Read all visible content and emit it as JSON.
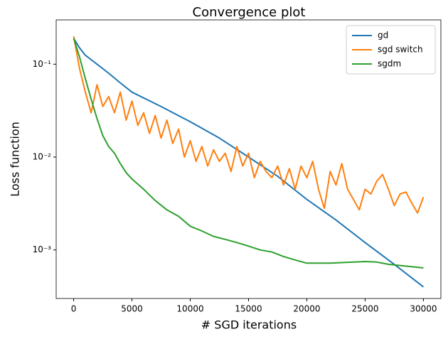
{
  "chart_data": {
    "type": "line",
    "title": "Convergence plot",
    "x_label": "# SGD iterations",
    "y_label": "Loss function",
    "xlim": [
      -1500,
      31500
    ],
    "xticks": [
      0,
      5000,
      10000,
      15000,
      20000,
      25000,
      30000
    ],
    "ylim": [
      0.0003,
      0.3
    ],
    "y_scale": "log",
    "yticks": [
      {
        "value": 0.1,
        "label": "10⁻¹"
      },
      {
        "value": 0.01,
        "label": "10⁻²"
      },
      {
        "value": 0.001,
        "label": "10⁻³"
      }
    ],
    "legend": "upper right",
    "series": [
      {
        "name": "gd",
        "color": "#1f77b4",
        "x": [
          0,
          500,
          1000,
          2000,
          3000,
          4000,
          5000,
          7500,
          10000,
          12500,
          15000,
          17500,
          20000,
          22500,
          25000,
          27500,
          30000
        ],
        "values": [
          0.19,
          0.15,
          0.125,
          0.1,
          0.08,
          0.063,
          0.05,
          0.035,
          0.024,
          0.016,
          0.01,
          0.0062,
          0.0035,
          0.0021,
          0.0012,
          0.0007,
          0.0004
        ]
      },
      {
        "name": "sgd switch",
        "color": "#ff7f0e",
        "x": [
          0,
          500,
          1000,
          1500,
          2000,
          2500,
          3000,
          3500,
          4000,
          4500,
          5000,
          5500,
          6000,
          6500,
          7000,
          7500,
          8000,
          8500,
          9000,
          9500,
          10000,
          10500,
          11000,
          11500,
          12000,
          12500,
          13000,
          13500,
          14000,
          14500,
          15000,
          15500,
          16000,
          16500,
          17000,
          17500,
          18000,
          18500,
          19000,
          19500,
          20000,
          20500,
          21000,
          21500,
          22000,
          22500,
          23000,
          23500,
          24000,
          24500,
          25000,
          25500,
          26000,
          26500,
          27000,
          27500,
          28000,
          28500,
          29000,
          29500,
          30000
        ],
        "values": [
          0.2,
          0.09,
          0.05,
          0.03,
          0.06,
          0.035,
          0.045,
          0.03,
          0.05,
          0.025,
          0.04,
          0.022,
          0.03,
          0.018,
          0.028,
          0.016,
          0.025,
          0.014,
          0.02,
          0.01,
          0.015,
          0.009,
          0.013,
          0.008,
          0.012,
          0.009,
          0.011,
          0.007,
          0.013,
          0.008,
          0.011,
          0.006,
          0.009,
          0.007,
          0.006,
          0.008,
          0.005,
          0.0075,
          0.0045,
          0.008,
          0.006,
          0.009,
          0.0045,
          0.0028,
          0.007,
          0.005,
          0.0085,
          0.0045,
          0.0035,
          0.0027,
          0.0045,
          0.004,
          0.0055,
          0.0065,
          0.0045,
          0.003,
          0.004,
          0.0042,
          0.0032,
          0.0025,
          0.0037
        ]
      },
      {
        "name": "sgdm",
        "color": "#2ca02c",
        "x": [
          0,
          500,
          1000,
          1500,
          2000,
          2500,
          3000,
          3500,
          4000,
          4500,
          5000,
          6000,
          7000,
          8000,
          9000,
          10000,
          11000,
          12000,
          13000,
          14000,
          15000,
          16000,
          17000,
          18000,
          19000,
          20000,
          22000,
          24000,
          25000,
          26000,
          27000,
          28000,
          29000,
          30000
        ],
        "values": [
          0.19,
          0.12,
          0.07,
          0.042,
          0.026,
          0.017,
          0.013,
          0.011,
          0.0085,
          0.0068,
          0.0058,
          0.0045,
          0.0034,
          0.0027,
          0.0023,
          0.0018,
          0.0016,
          0.0014,
          0.0013,
          0.0012,
          0.0011,
          0.001,
          0.00095,
          0.00085,
          0.00078,
          0.00072,
          0.00072,
          0.00074,
          0.00075,
          0.00074,
          0.0007,
          0.00068,
          0.00066,
          0.00064
        ]
      }
    ]
  }
}
